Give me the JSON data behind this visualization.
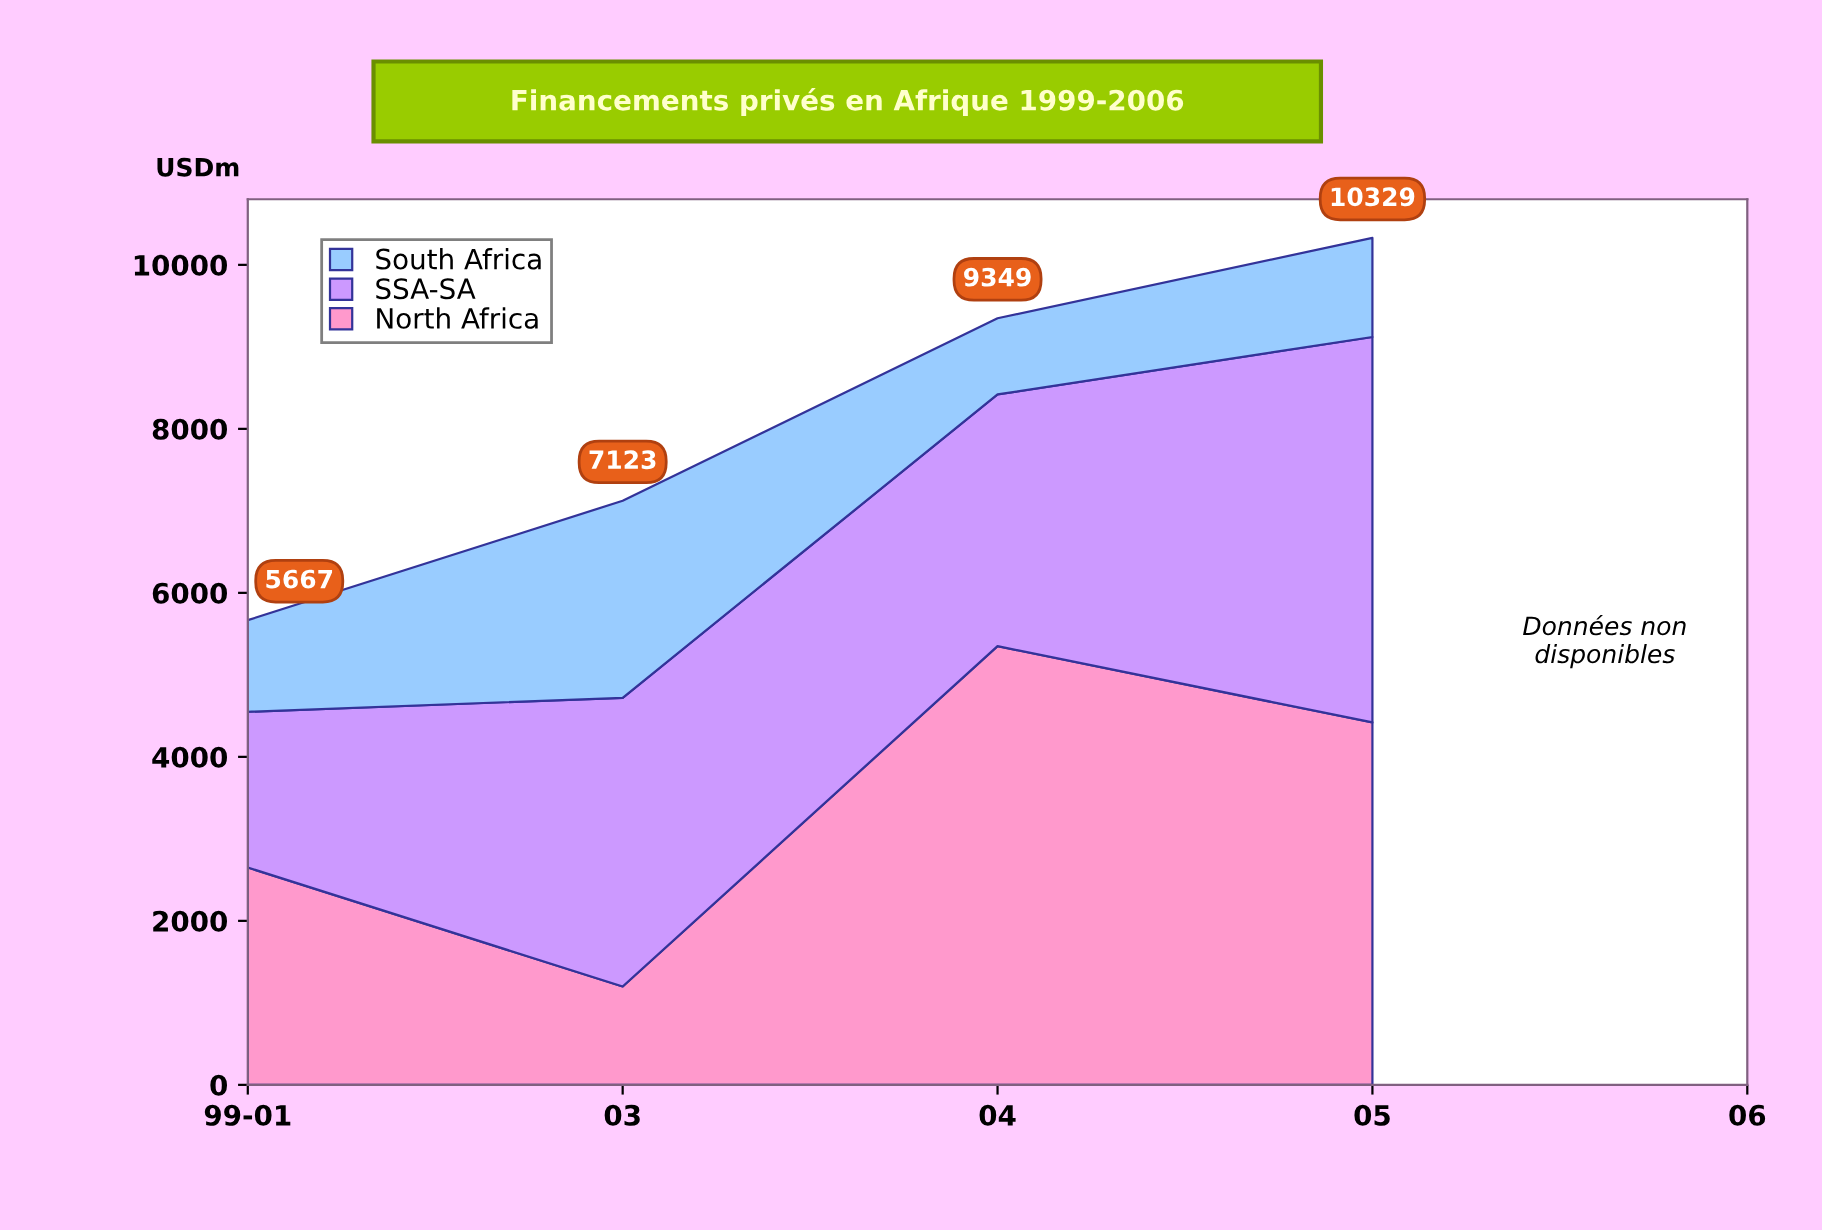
{
  "chart_data": {
    "type": "area",
    "stacked": true,
    "title": "Financements privés en Afrique 1999-2006",
    "ylabel": "USDm",
    "categories": [
      "99-01",
      "03",
      "04",
      "05",
      "06"
    ],
    "series": [
      {
        "name": "North Africa",
        "color": "#ff99cc",
        "values": [
          2650,
          1200,
          5350,
          4420,
          null
        ]
      },
      {
        "name": "SSA-SA",
        "color": "#cc99ff",
        "values": [
          1900,
          3520,
          3070,
          4700,
          null
        ]
      },
      {
        "name": "South Africa",
        "color": "#99ccff",
        "values": [
          1117,
          2403,
          929,
          1209,
          null
        ]
      }
    ],
    "totals": [
      "5667",
      "7123",
      "9349",
      "10329"
    ],
    "ylim": [
      0,
      10800
    ],
    "yticks": [
      0,
      2000,
      4000,
      6000,
      8000,
      10000
    ],
    "annotations": [
      "Données non disponibles"
    ],
    "legend": "top left",
    "grid": false
  }
}
